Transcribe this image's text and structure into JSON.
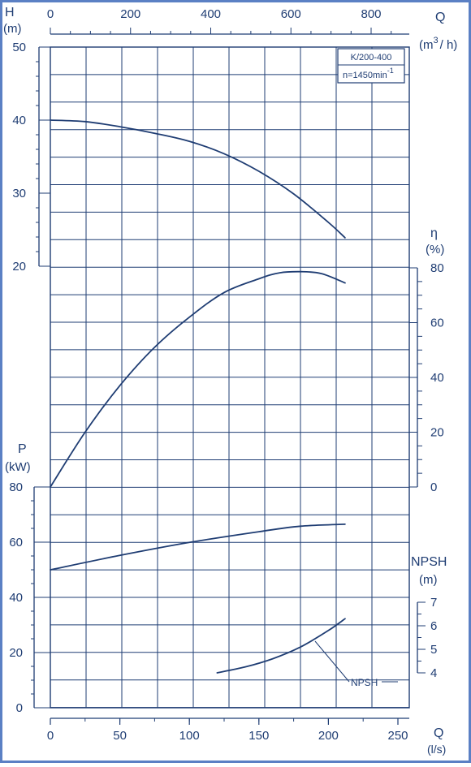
{
  "chart_data": {
    "type": "line",
    "title": "K/200-400",
    "subtitle": "n=1450min",
    "subtitle_sup": "-1",
    "colors": {
      "ink": "#1f3d73",
      "background": "#ffffff",
      "frame": "#5b80c4"
    },
    "x_axis": {
      "label": "Q",
      "unit": "(l/s)",
      "range": [
        0,
        250
      ],
      "ticks": [
        0,
        50,
        100,
        150,
        200,
        250
      ],
      "tick_labels": [
        "0",
        "50",
        "100",
        "150",
        "200",
        "250"
      ]
    },
    "x_top_axis": {
      "label": "Q",
      "unit_parts": [
        "(m",
        "3",
        "/ h)"
      ],
      "range": [
        0,
        900
      ],
      "ticks": [
        0,
        200,
        400,
        600,
        800
      ],
      "tick_labels": [
        "0",
        "200",
        "400",
        "600",
        "800"
      ]
    },
    "y_axes": [
      {
        "id": "H",
        "label": "H",
        "unit": "(m)",
        "range": [
          0,
          50
        ],
        "ticks": [
          20,
          30,
          40,
          50
        ],
        "tick_labels": [
          "20",
          "30",
          "40",
          "50"
        ]
      },
      {
        "id": "eta",
        "label": "η",
        "unit": "(%)",
        "range": [
          0,
          80
        ],
        "ticks": [
          0,
          20,
          40,
          60,
          80
        ],
        "tick_labels": [
          "0",
          "20",
          "40",
          "60",
          "80"
        ]
      },
      {
        "id": "P",
        "label": "P",
        "unit": "(kW)",
        "range": [
          0,
          80
        ],
        "ticks": [
          0,
          20,
          40,
          60,
          80
        ],
        "tick_labels": [
          "0",
          "20",
          "40",
          "60",
          "80"
        ]
      },
      {
        "id": "NPSH",
        "label": "NPSH",
        "unit": "(m)",
        "range": [
          4,
          7
        ],
        "ticks": [
          4,
          5,
          6,
          7
        ],
        "tick_labels": [
          "4",
          "5",
          "6",
          "7"
        ]
      }
    ],
    "series": [
      {
        "axis": "H",
        "x": [
          0,
          25,
          50,
          75,
          100,
          125,
          150,
          175,
          200,
          212
        ],
        "y": [
          40,
          39.8,
          39.1,
          38.2,
          37.1,
          35.4,
          33.0,
          29.9,
          26.0,
          23.9
        ]
      },
      {
        "axis": "eta",
        "x": [
          0,
          25,
          50,
          75,
          100,
          125,
          150,
          165,
          180,
          195,
          212
        ],
        "y": [
          0,
          20,
          37,
          51,
          62,
          71,
          76,
          78.2,
          78.6,
          77.9,
          74.5
        ]
      },
      {
        "axis": "P",
        "x": [
          0,
          50,
          100,
          150,
          180,
          212
        ],
        "y": [
          50,
          55.2,
          59.9,
          63.8,
          65.8,
          66.5
        ]
      },
      {
        "name": "NPSH",
        "axis": "NPSH",
        "x": [
          120,
          140,
          160,
          180,
          200,
          212
        ],
        "y": [
          4.0,
          4.25,
          4.6,
          5.1,
          5.8,
          6.3
        ]
      }
    ],
    "annotations": [
      {
        "text": "NPSH",
        "series": "NPSH"
      }
    ],
    "grid": true
  }
}
